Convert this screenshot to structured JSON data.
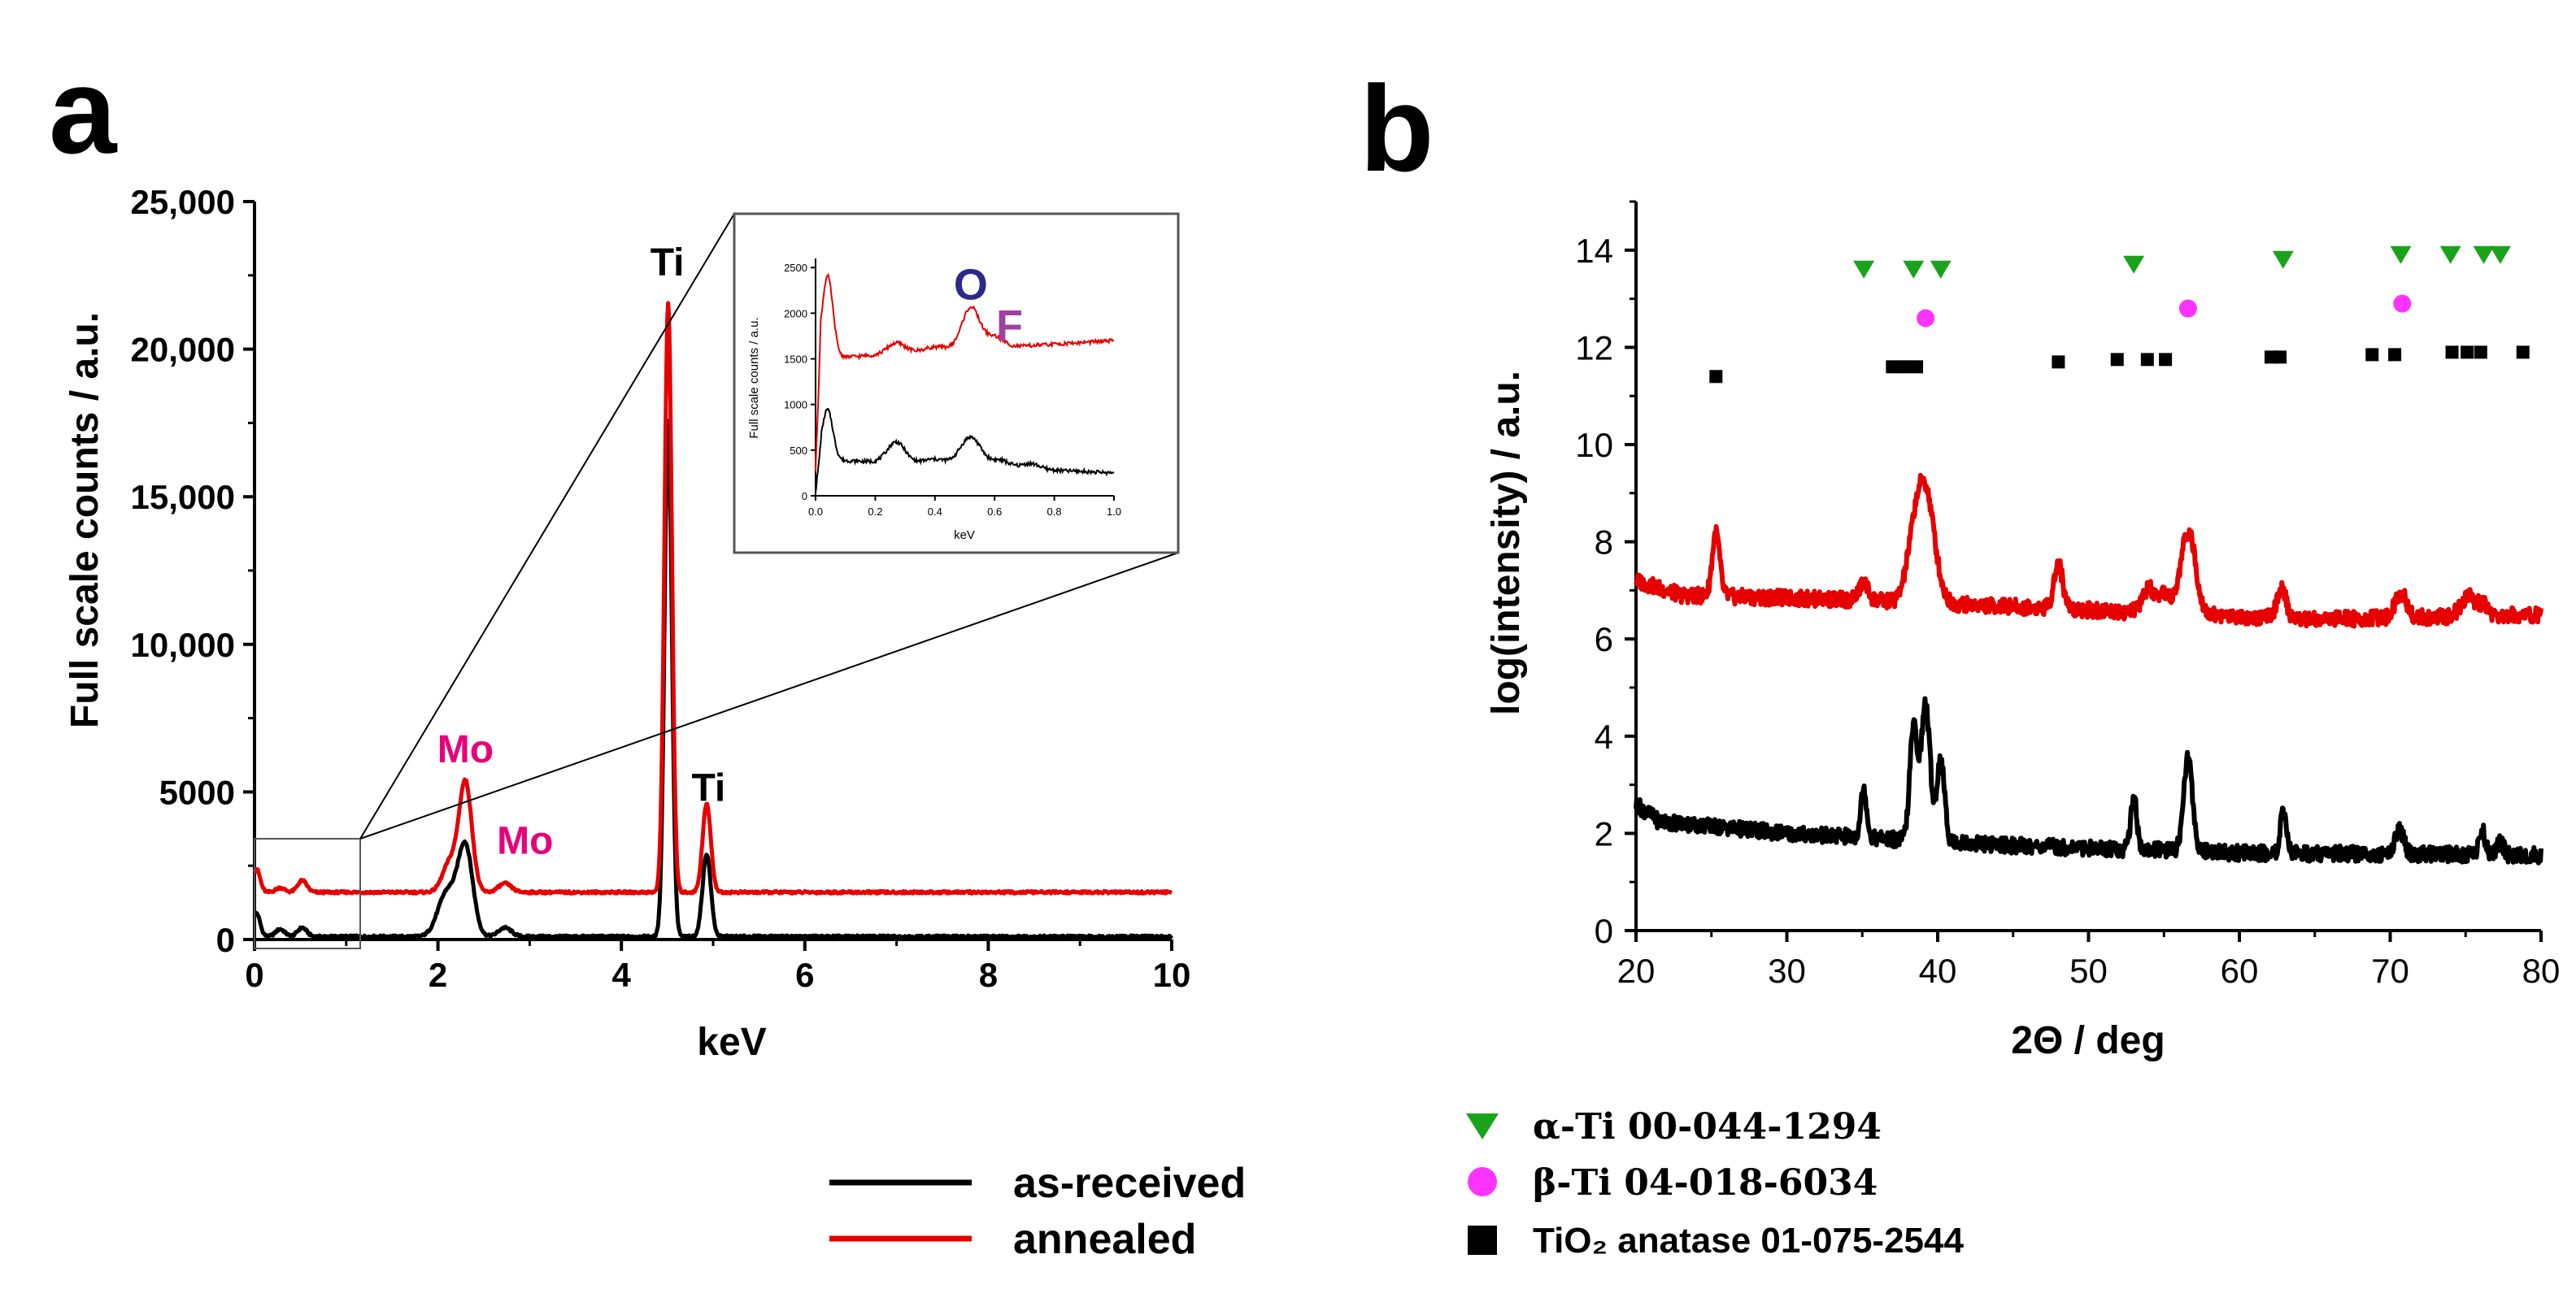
{
  "figure": {
    "panel_a_letter": "a",
    "panel_b_letter": "b"
  },
  "colors": {
    "as_received": "#000000",
    "annealed": "#e60000",
    "mo_label": "#e8007a",
    "o_label": "#2a2a8c",
    "f_label": "#a040a0",
    "alpha_ti": "#1aa31a",
    "beta_ti": "#ff33ff",
    "anatase": "#000000"
  },
  "chart_data": [
    {
      "id": "eds",
      "type": "line",
      "xlabel": "keV",
      "ylabel": "Full scale counts / a.u.",
      "xlim": [
        0,
        10
      ],
      "ylim": [
        0,
        25000
      ],
      "xticks": [
        0,
        2,
        4,
        6,
        8,
        10
      ],
      "yticks": [
        0,
        5000,
        10000,
        15000,
        20000,
        25000
      ],
      "ytick_labels": [
        "0",
        "5000",
        "10,000",
        "15,000",
        "20,000",
        "25,000"
      ],
      "annotations": [
        {
          "text": "Ti",
          "x": 4.5,
          "y": 22500,
          "color": "black"
        },
        {
          "text": "Ti",
          "x": 4.95,
          "y": 4700,
          "color": "black"
        },
        {
          "text": "Mo",
          "x": 2.3,
          "y": 6000,
          "color": "mo"
        },
        {
          "text": "Mo",
          "x": 2.95,
          "y": 2900,
          "color": "mo"
        }
      ],
      "series": [
        {
          "name": "as-received",
          "baseline": 100,
          "peaks": [
            [
              0.02,
              800,
              0.04
            ],
            [
              0.28,
              250,
              0.05
            ],
            [
              0.52,
              300,
              0.05
            ],
            [
              2.1,
              1500,
              0.1
            ],
            [
              2.3,
              3000,
              0.08
            ],
            [
              2.73,
              300,
              0.07
            ],
            [
              4.51,
              17500,
              0.04
            ],
            [
              4.93,
              2800,
              0.045
            ]
          ]
        },
        {
          "name": "annealed",
          "baseline": 1600,
          "peaks": [
            [
              0.02,
              800,
              0.04
            ],
            [
              0.28,
              150,
              0.05
            ],
            [
              0.52,
              400,
              0.05
            ],
            [
              2.13,
              1000,
              0.08
            ],
            [
              2.3,
              3700,
              0.07
            ],
            [
              2.73,
              300,
              0.07
            ],
            [
              4.51,
              20000,
              0.04
            ],
            [
              4.93,
              3000,
              0.045
            ]
          ]
        }
      ],
      "inset": {
        "xlabel": "keV",
        "ylabel": "Full scale counts / a.u.",
        "xlim": [
          0,
          1
        ],
        "ylim": [
          0,
          2600
        ],
        "xticks": [
          0,
          0.2,
          0.4,
          0.6,
          0.8,
          1.0
        ],
        "xtick_labels": [
          "0.0",
          "0.2",
          "0.4",
          "0.6",
          "0.8",
          "1.0"
        ],
        "yticks": [
          0,
          500,
          1000,
          1500,
          2000,
          2500
        ],
        "annotations": [
          {
            "text": "O",
            "x": 0.52,
            "y": 2150,
            "color": "o"
          },
          {
            "text": "F",
            "x": 0.65,
            "y": 1700,
            "color": "f"
          }
        ]
      }
    },
    {
      "id": "xrd",
      "type": "line",
      "xlabel": "2Θ / deg",
      "ylabel": "log(intensity) / a.u.",
      "xlim": [
        20,
        80
      ],
      "ylim": [
        0,
        15
      ],
      "xticks": [
        20,
        30,
        40,
        50,
        60,
        70,
        80
      ],
      "yticks": [
        0,
        2,
        4,
        6,
        8,
        10,
        12,
        14
      ],
      "series": [
        {
          "name": "annealed",
          "baseline": [
            [
              20,
              7.2
            ],
            [
              23,
              6.9
            ],
            [
              35,
              6.8
            ],
            [
              50,
              6.6
            ],
            [
              65,
              6.4
            ],
            [
              80,
              6.5
            ]
          ],
          "peaks": [
            [
              25.3,
              1.3,
              0.25
            ],
            [
              35.1,
              0.35,
              0.3
            ],
            [
              38.4,
              0.9,
              0.5
            ],
            [
              39.2,
              2.2,
              0.6
            ],
            [
              48.0,
              0.9,
              0.3
            ],
            [
              54.0,
              0.5,
              0.4
            ],
            [
              55.1,
              0.4,
              0.3
            ],
            [
              56.6,
              1.7,
              0.5
            ],
            [
              62.8,
              0.6,
              0.3
            ],
            [
              70.7,
              0.5,
              0.4
            ],
            [
              75.2,
              0.4,
              0.5
            ],
            [
              76.2,
              0.2,
              0.3
            ]
          ]
        },
        {
          "name": "as-received",
          "baseline": [
            [
              20,
              2.6
            ],
            [
              21.5,
              2.25
            ],
            [
              30,
              2.0
            ],
            [
              45,
              1.75
            ],
            [
              60,
              1.6
            ],
            [
              80,
              1.55
            ]
          ],
          "peaks": [
            [
              35.1,
              1.0,
              0.2
            ],
            [
              38.4,
              2.3,
              0.25
            ],
            [
              39.2,
              2.8,
              0.3
            ],
            [
              40.2,
              1.7,
              0.25
            ],
            [
              53.0,
              1.1,
              0.2
            ],
            [
              56.6,
              1.9,
              0.3
            ],
            [
              62.9,
              0.8,
              0.2
            ],
            [
              70.6,
              0.5,
              0.3
            ],
            [
              76.1,
              0.5,
              0.2
            ],
            [
              77.3,
              0.3,
              0.2
            ]
          ]
        }
      ],
      "markers": {
        "alpha_ti": [
          [
            35.1,
            13.6
          ],
          [
            38.4,
            13.6
          ],
          [
            40.2,
            13.6
          ],
          [
            53.0,
            13.7
          ],
          [
            62.9,
            13.8
          ],
          [
            70.7,
            13.9
          ],
          [
            74.0,
            13.9
          ],
          [
            76.2,
            13.9
          ],
          [
            77.3,
            13.9
          ]
        ],
        "beta_ti": [
          [
            39.2,
            12.6
          ],
          [
            56.6,
            12.8
          ],
          [
            70.8,
            12.9
          ]
        ],
        "anatase": [
          [
            25.3,
            11.4
          ],
          [
            37.0,
            11.6
          ],
          [
            37.8,
            11.6
          ],
          [
            38.6,
            11.6
          ],
          [
            48.0,
            11.7
          ],
          [
            51.9,
            11.75
          ],
          [
            53.9,
            11.75
          ],
          [
            55.1,
            11.75
          ],
          [
            62.1,
            11.8
          ],
          [
            62.7,
            11.8
          ],
          [
            68.8,
            11.85
          ],
          [
            70.3,
            11.85
          ],
          [
            74.1,
            11.9
          ],
          [
            75.1,
            11.9
          ],
          [
            76.0,
            11.9
          ],
          [
            78.8,
            11.9
          ]
        ]
      }
    }
  ],
  "legend_a": [
    {
      "label": "as-received",
      "color": "#000000"
    },
    {
      "label": "annealed",
      "color": "#e60000"
    }
  ],
  "legend_b": [
    {
      "symbol": "triangle",
      "label": "α-Ti 00-044-1294",
      "color": "#1aa31a"
    },
    {
      "symbol": "circle",
      "label": "β-Ti 04-018-6034",
      "color": "#ff33ff"
    },
    {
      "symbol": "square",
      "label": "TiO₂ anatase 01-075-2544",
      "color": "#000000"
    }
  ]
}
